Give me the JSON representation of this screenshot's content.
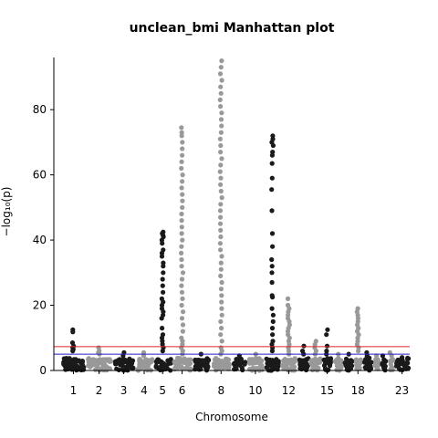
{
  "chart_data": {
    "type": "scatter",
    "title": "unclean_bmi Manhattan plot",
    "xlabel": "Chromosome",
    "ylabel": "−log₁₀(p)",
    "ylim": [
      0,
      96
    ],
    "y_ticks": [
      0,
      20,
      40,
      60,
      80
    ],
    "x_tick_labels": [
      "1",
      "2",
      "3",
      "4",
      "5",
      "6",
      "8",
      "10",
      "12",
      "15",
      "18",
      "23"
    ],
    "chromosomes": [
      {
        "chr": 1,
        "start": 0,
        "end": 120,
        "peaks": [
          12.5,
          11.8,
          8.5,
          7.5,
          7.0,
          6.5,
          6.0
        ]
      },
      {
        "chr": 2,
        "start": 120,
        "end": 250,
        "peaks": [
          7.0,
          6.0,
          5.5,
          5.0
        ]
      },
      {
        "chr": 3,
        "start": 250,
        "end": 360,
        "peaks": [
          5.5,
          4.5
        ]
      },
      {
        "chr": 4,
        "start": 360,
        "end": 450,
        "peaks": [
          5.5,
          4.5
        ]
      },
      {
        "chr": 5,
        "start": 450,
        "end": 540,
        "peaks": [
          42.5,
          42.0,
          41.5,
          41.0,
          40.0,
          39.0,
          37.0,
          36.0,
          35.0,
          33.0,
          32.0,
          30.0,
          28.0,
          26.0,
          24.0,
          22.0,
          21.0,
          20.0,
          19.0,
          18.0,
          17.0,
          16.0,
          13.0,
          11.0,
          10.0,
          9.0,
          8.0,
          7.0,
          6.0
        ]
      },
      {
        "chr": 6,
        "start": 540,
        "end": 640,
        "peaks": [
          74.5,
          73.0,
          72.0,
          70.0,
          68.0,
          66.0,
          64.0,
          62.0,
          60.0,
          58.0,
          56.0,
          54.0,
          52.0,
          50.0,
          48.0,
          46.0,
          44.0,
          42.0,
          40.0,
          38.0,
          36.0,
          34.0,
          32.0,
          30.0,
          28.0,
          26.0,
          24.0,
          22.0,
          20.0,
          18.0,
          16.0,
          14.0,
          12.0,
          10.0,
          9.0,
          8.0,
          7.0,
          6.0,
          5.0
        ]
      },
      {
        "chr": 7,
        "start": 640,
        "end": 730,
        "peaks": [
          5.0
        ]
      },
      {
        "chr": 8,
        "start": 730,
        "end": 830,
        "peaks": [
          95.0,
          93.0,
          91.0,
          89.0,
          87.0,
          85.0,
          83.0,
          81.0,
          79.0,
          77.0,
          75.0,
          73.0,
          71.0,
          69.0,
          67.0,
          65.0,
          63.0,
          61.0,
          59.0,
          57.0,
          55.0,
          53.0,
          51.0,
          49.0,
          47.0,
          45.0,
          43.0,
          41.0,
          39.0,
          37.0,
          35.0,
          33.0,
          31.0,
          29.0,
          27.0,
          25.0,
          23.0,
          21.0,
          19.0,
          17.0,
          15.0,
          13.0,
          11.0,
          9.0,
          7.0,
          6.0,
          5.0
        ]
      },
      {
        "chr": 9,
        "start": 830,
        "end": 905,
        "peaks": [
          4.5
        ]
      },
      {
        "chr": 10,
        "start": 905,
        "end": 990,
        "peaks": [
          5.0
        ]
      },
      {
        "chr": 11,
        "start": 990,
        "end": 1070,
        "peaks": [
          72.0,
          71.0,
          70.0,
          69.0,
          67.0,
          66.0,
          63.5,
          59.0,
          55.5,
          49.0,
          42.0,
          38.0,
          34.0,
          32.0,
          30.0,
          27.0,
          23.0,
          22.5,
          19.0,
          17.0,
          15.0,
          13.0,
          11.0,
          9.0,
          8.0,
          7.0,
          6.0
        ]
      },
      {
        "chr": 12,
        "start": 1070,
        "end": 1150,
        "peaks": [
          22.0,
          20.0,
          19.0,
          18.0,
          17.0,
          16.0,
          15.0,
          14.0,
          13.0,
          12.0,
          11.0,
          10.0,
          9.0,
          8.0,
          7.0,
          6.0,
          5.0
        ]
      },
      {
        "chr": 13,
        "start": 1150,
        "end": 1210,
        "peaks": [
          7.5,
          6.0,
          5.0
        ]
      },
      {
        "chr": 14,
        "start": 1210,
        "end": 1270,
        "peaks": [
          9.0,
          8.0,
          7.0,
          6.0,
          5.0
        ]
      },
      {
        "chr": 15,
        "start": 1270,
        "end": 1325,
        "peaks": [
          12.5,
          11.0,
          7.5,
          6.0,
          5.0
        ]
      },
      {
        "chr": 16,
        "start": 1325,
        "end": 1375,
        "peaks": [
          5.0
        ]
      },
      {
        "chr": 17,
        "start": 1375,
        "end": 1425,
        "peaks": [
          5.0
        ]
      },
      {
        "chr": 18,
        "start": 1425,
        "end": 1470,
        "peaks": [
          19.0,
          18.0,
          17.0,
          16.0,
          15.0,
          14.0,
          13.0,
          12.0,
          11.0,
          10.0,
          9.0,
          8.0,
          7.0,
          6.0
        ]
      },
      {
        "chr": 19,
        "start": 1470,
        "end": 1520,
        "peaks": [
          5.5,
          4.5
        ]
      },
      {
        "chr": 20,
        "start": 1520,
        "end": 1555,
        "peaks": [
          4.5
        ]
      },
      {
        "chr": 21,
        "start": 1555,
        "end": 1590,
        "peaks": [
          4.5
        ]
      },
      {
        "chr": 22,
        "start": 1590,
        "end": 1625,
        "peaks": [
          5.5,
          4.5
        ]
      },
      {
        "chr": 23,
        "start": 1625,
        "end": 1700,
        "peaks": [
          4.0
        ]
      }
    ],
    "xlim": [
      0,
      1700
    ],
    "tick_positions_chr": [
      1,
      2,
      3,
      4,
      5,
      6,
      8,
      10,
      12,
      15,
      18,
      23
    ],
    "thresholds": [
      {
        "value": 7.3,
        "color": "#d62728"
      },
      {
        "value": 5.0,
        "color": "#1f1fbf"
      }
    ],
    "colors": {
      "odd": "#1a1a1a",
      "even": "#999999"
    },
    "baseline_level": 3.5,
    "grid": false
  }
}
